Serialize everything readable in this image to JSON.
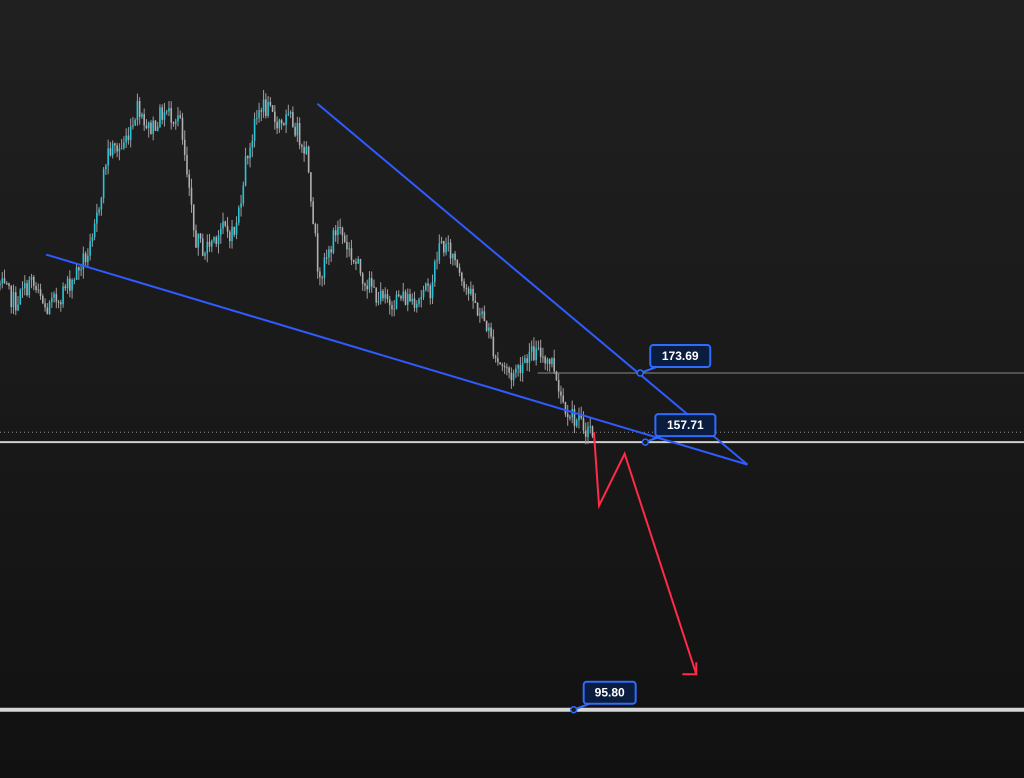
{
  "chart_data": {
    "type": "candlestick",
    "title": "",
    "xlabel": "",
    "ylabel": "",
    "ylim": [
      80,
      260
    ],
    "x_range": [
      0,
      100
    ],
    "grid": false,
    "legend": "none",
    "colors": {
      "background": "#1a1a1a",
      "candle": "#26c6da",
      "wick": "#9e9e9e",
      "trendline": "#2f5bff",
      "projection": "#ff2b48",
      "level_line": "#cfcfcf",
      "label_border": "#2f6bff",
      "label_fill": "#0b1d3f"
    },
    "price_path": [
      [
        0,
        194
      ],
      [
        1.5,
        190
      ],
      [
        3,
        195
      ],
      [
        4.5,
        188
      ],
      [
        6,
        192
      ],
      [
        7.5,
        197
      ],
      [
        9,
        203
      ],
      [
        10.5,
        225
      ],
      [
        12,
        226
      ],
      [
        13.5,
        236
      ],
      [
        14.5,
        230
      ],
      [
        16,
        234
      ],
      [
        17.5,
        233
      ],
      [
        19,
        205
      ],
      [
        20,
        202
      ],
      [
        21.5,
        207
      ],
      [
        23,
        206
      ],
      [
        24,
        223
      ],
      [
        25.5,
        236
      ],
      [
        27,
        232
      ],
      [
        28.5,
        232
      ],
      [
        30,
        225
      ],
      [
        31,
        199
      ],
      [
        31.5,
        197
      ],
      [
        33,
        208
      ],
      [
        34.5,
        200
      ],
      [
        36,
        194
      ],
      [
        37.5,
        190
      ],
      [
        39,
        191
      ],
      [
        40.5,
        191
      ],
      [
        42,
        193
      ],
      [
        43,
        204
      ],
      [
        44.5,
        200
      ],
      [
        46,
        191
      ],
      [
        47.5,
        185
      ],
      [
        48.5,
        177
      ],
      [
        50,
        173
      ],
      [
        51.5,
        178
      ],
      [
        53,
        178
      ],
      [
        54,
        176
      ],
      [
        55,
        167
      ],
      [
        56.5,
        162
      ],
      [
        58,
        160
      ]
    ],
    "trendlines": [
      {
        "name": "lower",
        "x": [
          4.5,
          73
        ],
        "y": [
          201.1,
          152.5
        ]
      },
      {
        "name": "upper",
        "x": [
          31,
          73
        ],
        "y": [
          236,
          152.5
        ]
      }
    ],
    "projection": {
      "x": [
        58,
        58.5,
        61,
        68
      ],
      "y": [
        160,
        143,
        155,
        104
      ]
    },
    "levels": [
      {
        "value": 173.69,
        "label": "173.69",
        "style": "thin",
        "label_x": 63.5
      },
      {
        "value": 157.71,
        "label": "157.71",
        "style": "solid",
        "label_x": 64
      },
      {
        "value": 95.8,
        "label": "95.80",
        "style": "thick",
        "label_x": 57
      },
      {
        "value": 160,
        "label": "",
        "style": "dotted"
      }
    ]
  }
}
